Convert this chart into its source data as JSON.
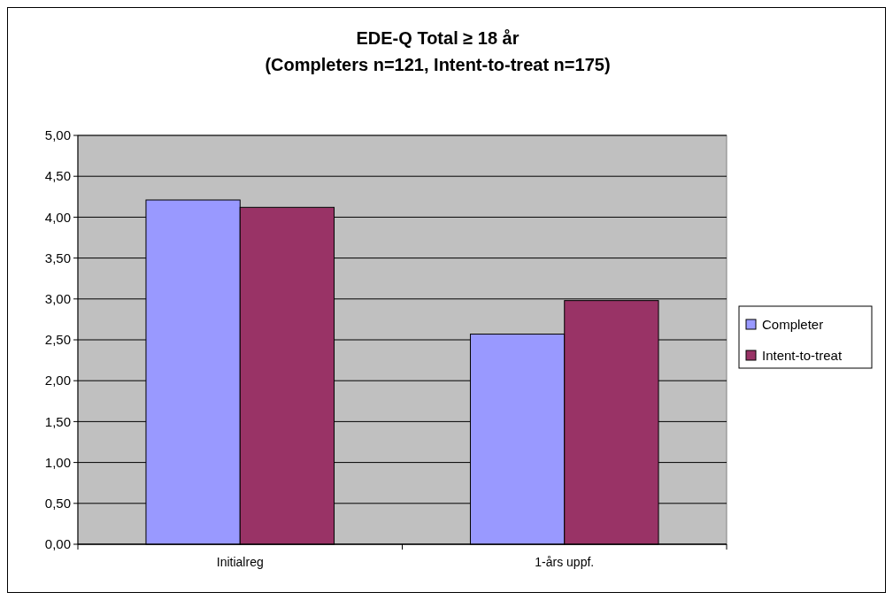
{
  "chart_data": {
    "type": "bar",
    "title": "EDE-Q Total ≥ 18 år",
    "subtitle": "(Completers n=121, Intent-to-treat n=175)",
    "categories": [
      "Initialreg",
      "1-års uppf."
    ],
    "series": [
      {
        "name": "Completer",
        "color": "#9999ff",
        "values": [
          4.21,
          2.57
        ]
      },
      {
        "name": "Intent-to-treat",
        "color": "#993366",
        "values": [
          4.12,
          2.98
        ]
      }
    ],
    "ylim": [
      0,
      5
    ],
    "yticks": [
      {
        "value": 0,
        "label": "0,00"
      },
      {
        "value": 0.5,
        "label": "0,50"
      },
      {
        "value": 1,
        "label": "1,00"
      },
      {
        "value": 1.5,
        "label": "1,50"
      },
      {
        "value": 2,
        "label": "2,00"
      },
      {
        "value": 2.5,
        "label": "2,50"
      },
      {
        "value": 3,
        "label": "3,00"
      },
      {
        "value": 3.5,
        "label": "3,50"
      },
      {
        "value": 4,
        "label": "4,00"
      },
      {
        "value": 4.5,
        "label": "4,50"
      },
      {
        "value": 5,
        "label": "5,00"
      }
    ],
    "grid": "y",
    "legend": "right"
  }
}
